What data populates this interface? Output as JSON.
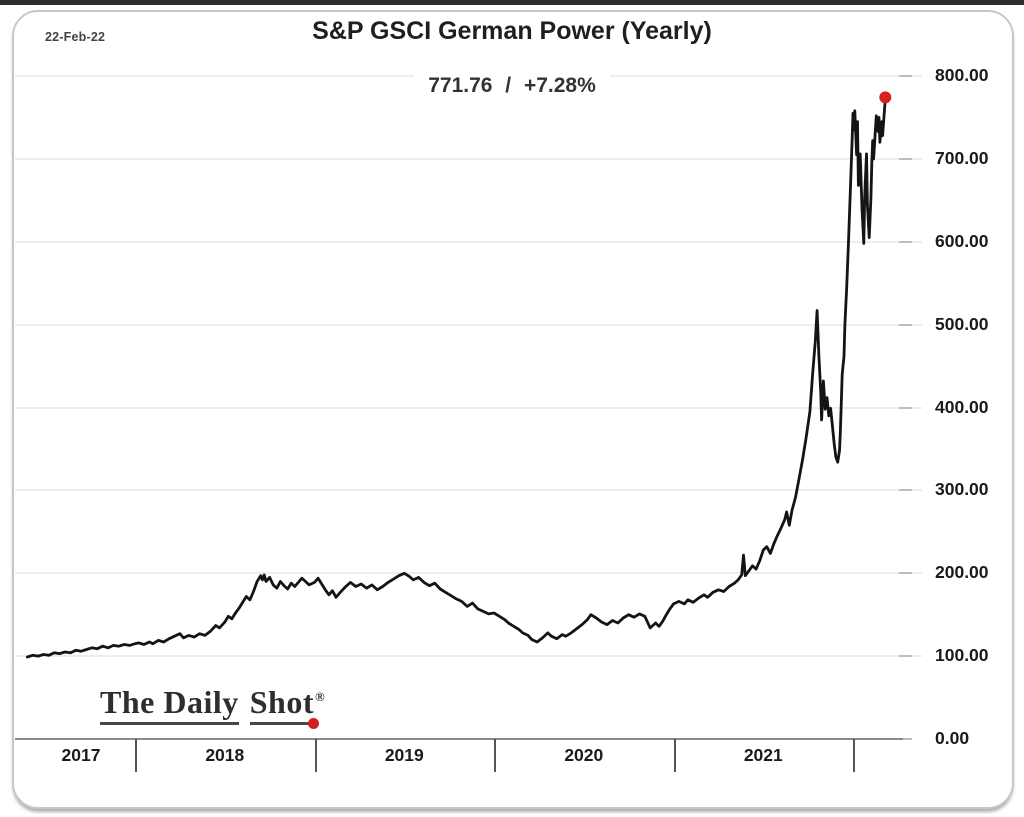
{
  "header": {
    "date": "22-Feb-22",
    "title": "S&P GSCI German Power (Yearly)",
    "subtitle": "771.76 / +7.28%"
  },
  "logo": {
    "word1": "The Daily",
    "word2": "Shot",
    "reg_mark": "®"
  },
  "colors": {
    "line": "#141414",
    "marker": "#d81e1e",
    "grid": "#ededed",
    "axis": "#8a8a8a",
    "top_bar": "#2e2e2e"
  },
  "chart_data": {
    "type": "line",
    "title": "S&P GSCI German Power (Yearly)",
    "subtitle_last_value": 771.76,
    "subtitle_change_pct": "+7.28%",
    "as_of_date": "22-Feb-22",
    "ylim": [
      0,
      800
    ],
    "y_ticks": [
      800,
      700,
      600,
      500,
      400,
      300,
      200,
      100,
      0
    ],
    "y_tick_labels": [
      "800.00",
      "700.00",
      "600.00",
      "500.00",
      "400.00",
      "300.00",
      "200.00",
      "100.00",
      "0.00"
    ],
    "x_tick_labels": [
      "2017",
      "2018",
      "2019",
      "2020",
      "2021"
    ],
    "x_range_years": [
      2017.4,
      2022.19
    ],
    "grid": "horizontal",
    "legend": "none",
    "series": [
      {
        "name": "S&P GSCI German Power",
        "points": [
          [
            2017.4,
            99
          ],
          [
            2017.43,
            101
          ],
          [
            2017.46,
            100
          ],
          [
            2017.49,
            102
          ],
          [
            2017.52,
            101
          ],
          [
            2017.55,
            104
          ],
          [
            2017.58,
            103
          ],
          [
            2017.61,
            105
          ],
          [
            2017.64,
            104
          ],
          [
            2017.67,
            107
          ],
          [
            2017.7,
            106
          ],
          [
            2017.73,
            108
          ],
          [
            2017.76,
            110
          ],
          [
            2017.79,
            109
          ],
          [
            2017.82,
            112
          ],
          [
            2017.85,
            110
          ],
          [
            2017.88,
            113
          ],
          [
            2017.91,
            112
          ],
          [
            2017.94,
            114
          ],
          [
            2017.97,
            113
          ],
          [
            2018.0,
            115
          ],
          [
            2018.02,
            116
          ],
          [
            2018.05,
            114
          ],
          [
            2018.08,
            117
          ],
          [
            2018.1,
            115
          ],
          [
            2018.13,
            119
          ],
          [
            2018.16,
            117
          ],
          [
            2018.19,
            121
          ],
          [
            2018.22,
            124
          ],
          [
            2018.25,
            127
          ],
          [
            2018.27,
            122
          ],
          [
            2018.3,
            125
          ],
          [
            2018.33,
            123
          ],
          [
            2018.36,
            127
          ],
          [
            2018.39,
            125
          ],
          [
            2018.42,
            130
          ],
          [
            2018.45,
            137
          ],
          [
            2018.47,
            134
          ],
          [
            2018.5,
            141
          ],
          [
            2018.52,
            148
          ],
          [
            2018.54,
            145
          ],
          [
            2018.56,
            152
          ],
          [
            2018.58,
            158
          ],
          [
            2018.6,
            165
          ],
          [
            2018.62,
            172
          ],
          [
            2018.64,
            168
          ],
          [
            2018.66,
            178
          ],
          [
            2018.68,
            190
          ],
          [
            2018.7,
            197
          ],
          [
            2018.71,
            192
          ],
          [
            2018.72,
            198
          ],
          [
            2018.73,
            190
          ],
          [
            2018.75,
            195
          ],
          [
            2018.77,
            186
          ],
          [
            2018.79,
            182
          ],
          [
            2018.81,
            190
          ],
          [
            2018.83,
            185
          ],
          [
            2018.85,
            181
          ],
          [
            2018.87,
            188
          ],
          [
            2018.89,
            184
          ],
          [
            2018.91,
            189
          ],
          [
            2018.93,
            194
          ],
          [
            2018.95,
            190
          ],
          [
            2018.97,
            186
          ],
          [
            2019.0,
            189
          ],
          [
            2019.02,
            194
          ],
          [
            2019.04,
            187
          ],
          [
            2019.06,
            180
          ],
          [
            2019.08,
            174
          ],
          [
            2019.1,
            179
          ],
          [
            2019.12,
            171
          ],
          [
            2019.14,
            176
          ],
          [
            2019.17,
            183
          ],
          [
            2019.2,
            189
          ],
          [
            2019.23,
            184
          ],
          [
            2019.26,
            187
          ],
          [
            2019.29,
            182
          ],
          [
            2019.32,
            186
          ],
          [
            2019.35,
            180
          ],
          [
            2019.38,
            184
          ],
          [
            2019.41,
            189
          ],
          [
            2019.44,
            193
          ],
          [
            2019.47,
            197
          ],
          [
            2019.5,
            200
          ],
          [
            2019.53,
            196
          ],
          [
            2019.55,
            192
          ],
          [
            2019.58,
            195
          ],
          [
            2019.61,
            189
          ],
          [
            2019.64,
            185
          ],
          [
            2019.67,
            188
          ],
          [
            2019.7,
            181
          ],
          [
            2019.73,
            177
          ],
          [
            2019.76,
            173
          ],
          [
            2019.79,
            169
          ],
          [
            2019.82,
            166
          ],
          [
            2019.85,
            160
          ],
          [
            2019.88,
            164
          ],
          [
            2019.91,
            157
          ],
          [
            2019.94,
            154
          ],
          [
            2019.97,
            151
          ],
          [
            2020.0,
            152
          ],
          [
            2020.03,
            148
          ],
          [
            2020.06,
            144
          ],
          [
            2020.08,
            140
          ],
          [
            2020.11,
            136
          ],
          [
            2020.14,
            132
          ],
          [
            2020.16,
            128
          ],
          [
            2020.19,
            125
          ],
          [
            2020.21,
            120
          ],
          [
            2020.24,
            117
          ],
          [
            2020.27,
            122
          ],
          [
            2020.3,
            128
          ],
          [
            2020.32,
            124
          ],
          [
            2020.35,
            121
          ],
          [
            2020.38,
            126
          ],
          [
            2020.4,
            124
          ],
          [
            2020.43,
            128
          ],
          [
            2020.46,
            133
          ],
          [
            2020.49,
            138
          ],
          [
            2020.52,
            144
          ],
          [
            2020.54,
            150
          ],
          [
            2020.57,
            146
          ],
          [
            2020.6,
            141
          ],
          [
            2020.63,
            138
          ],
          [
            2020.66,
            143
          ],
          [
            2020.69,
            140
          ],
          [
            2020.72,
            146
          ],
          [
            2020.75,
            150
          ],
          [
            2020.78,
            147
          ],
          [
            2020.81,
            151
          ],
          [
            2020.84,
            148
          ],
          [
            2020.87,
            134
          ],
          [
            2020.9,
            140
          ],
          [
            2020.92,
            136
          ],
          [
            2020.94,
            142
          ],
          [
            2020.96,
            150
          ],
          [
            2020.98,
            157
          ],
          [
            2021.0,
            163
          ],
          [
            2021.03,
            166
          ],
          [
            2021.06,
            163
          ],
          [
            2021.08,
            168
          ],
          [
            2021.11,
            165
          ],
          [
            2021.14,
            170
          ],
          [
            2021.17,
            174
          ],
          [
            2021.19,
            171
          ],
          [
            2021.22,
            177
          ],
          [
            2021.25,
            180
          ],
          [
            2021.28,
            178
          ],
          [
            2021.31,
            184
          ],
          [
            2021.34,
            188
          ],
          [
            2021.36,
            192
          ],
          [
            2021.38,
            198
          ],
          [
            2021.39,
            222
          ],
          [
            2021.4,
            197
          ],
          [
            2021.42,
            203
          ],
          [
            2021.44,
            209
          ],
          [
            2021.46,
            205
          ],
          [
            2021.48,
            215
          ],
          [
            2021.5,
            228
          ],
          [
            2021.52,
            232
          ],
          [
            2021.54,
            224
          ],
          [
            2021.56,
            236
          ],
          [
            2021.58,
            246
          ],
          [
            2021.6,
            255
          ],
          [
            2021.62,
            265
          ],
          [
            2021.63,
            274
          ],
          [
            2021.645,
            258
          ],
          [
            2021.66,
            276
          ],
          [
            2021.68,
            292
          ],
          [
            2021.7,
            315
          ],
          [
            2021.72,
            338
          ],
          [
            2021.74,
            365
          ],
          [
            2021.76,
            395
          ],
          [
            2021.775,
            440
          ],
          [
            2021.79,
            480
          ],
          [
            2021.8,
            517
          ],
          [
            2021.81,
            462
          ],
          [
            2021.82,
            420
          ],
          [
            2021.825,
            385
          ],
          [
            2021.835,
            432
          ],
          [
            2021.845,
            398
          ],
          [
            2021.855,
            412
          ],
          [
            2021.865,
            390
          ],
          [
            2021.875,
            399
          ],
          [
            2021.885,
            378
          ],
          [
            2021.895,
            356
          ],
          [
            2021.905,
            340
          ],
          [
            2021.915,
            334
          ],
          [
            2021.925,
            348
          ],
          [
            2021.93,
            372
          ],
          [
            2021.94,
            440
          ],
          [
            2021.95,
            462
          ],
          [
            2021.955,
            500
          ],
          [
            2021.965,
            545
          ],
          [
            2021.975,
            600
          ],
          [
            2021.985,
            660
          ],
          [
            2021.995,
            722
          ],
          [
            2022.0,
            755
          ],
          [
            2022.005,
            735
          ],
          [
            2022.01,
            758
          ],
          [
            2022.02,
            705
          ],
          [
            2022.025,
            745
          ],
          [
            2022.03,
            668
          ],
          [
            2022.04,
            706
          ],
          [
            2022.05,
            640
          ],
          [
            2022.06,
            598
          ],
          [
            2022.065,
            655
          ],
          [
            2022.075,
            706
          ],
          [
            2022.08,
            645
          ],
          [
            2022.09,
            605
          ],
          [
            2022.1,
            652
          ],
          [
            2022.105,
            695
          ],
          [
            2022.11,
            722
          ],
          [
            2022.115,
            700
          ],
          [
            2022.125,
            735
          ],
          [
            2022.13,
            752
          ],
          [
            2022.14,
            733
          ],
          [
            2022.145,
            750
          ],
          [
            2022.15,
            720
          ],
          [
            2022.16,
            745
          ],
          [
            2022.165,
            728
          ],
          [
            2022.175,
            758
          ],
          [
            2022.18,
            771.76
          ]
        ]
      }
    ]
  }
}
